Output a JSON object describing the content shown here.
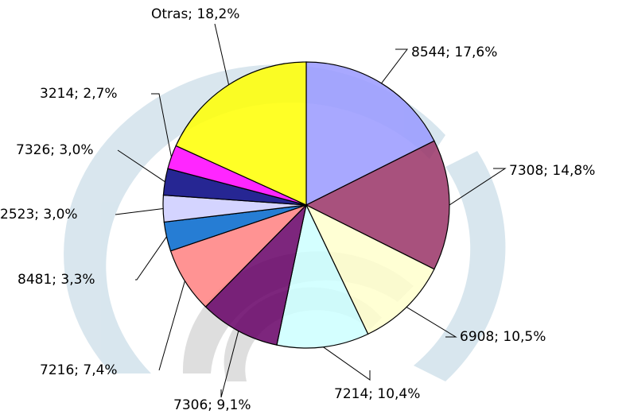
{
  "chart_data": {
    "type": "pie",
    "values": [
      17.6,
      14.8,
      10.5,
      10.4,
      9.1,
      7.4,
      3.3,
      3.0,
      3.0,
      2.7,
      18.2
    ],
    "value_labels": [
      "8544; 17,6%",
      "7308; 14,8%",
      "6908; 10,5%",
      "7214; 10,4%",
      "7306; 9,1%",
      "7216; 7,4%",
      "8481; 3,3%",
      "2523; 3,0%",
      "7326; 3,0%",
      "3214; 2,7%",
      "Otras; 18,2%"
    ],
    "colors": [
      "#9999ff",
      "#993366",
      "#ffffcc",
      "#ccffff",
      "#660066",
      "#ff8080",
      "#0066cc",
      "#ccccff",
      "#000080",
      "#ff00ff",
      "#ffff00"
    ]
  }
}
